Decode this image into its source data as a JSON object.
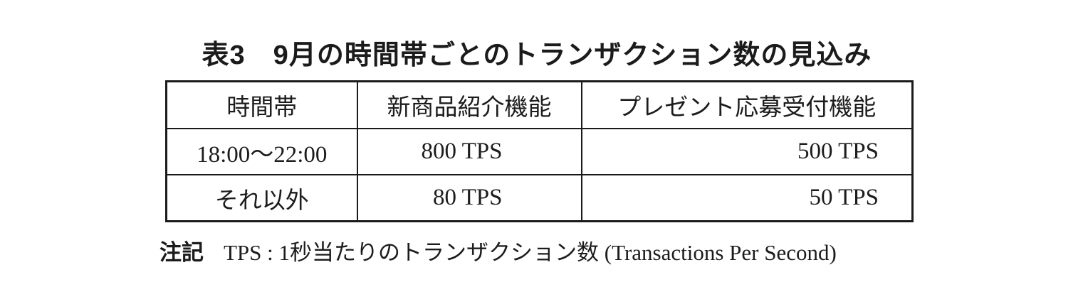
{
  "title": {
    "text": "表3　9月の時間帯ごとのトランザクション数の見込み"
  },
  "table": {
    "headers": [
      "時間帯",
      "新商品紹介機能",
      "プレゼント応募受付機能"
    ],
    "rows": [
      {
        "cells": [
          "18:00～22:00",
          "800 TPS",
          "500 TPS"
        ]
      },
      {
        "cells": [
          "それ以外",
          "80 TPS",
          "50 TPS"
        ]
      }
    ]
  },
  "footnote": {
    "label": "注記",
    "text": "TPS : 1秒当たりのトランザクション数 (Transactions Per Second)"
  },
  "colors": {
    "background": "#ffffff",
    "text": "#1c1c1c",
    "border": "#1a1a1a"
  }
}
